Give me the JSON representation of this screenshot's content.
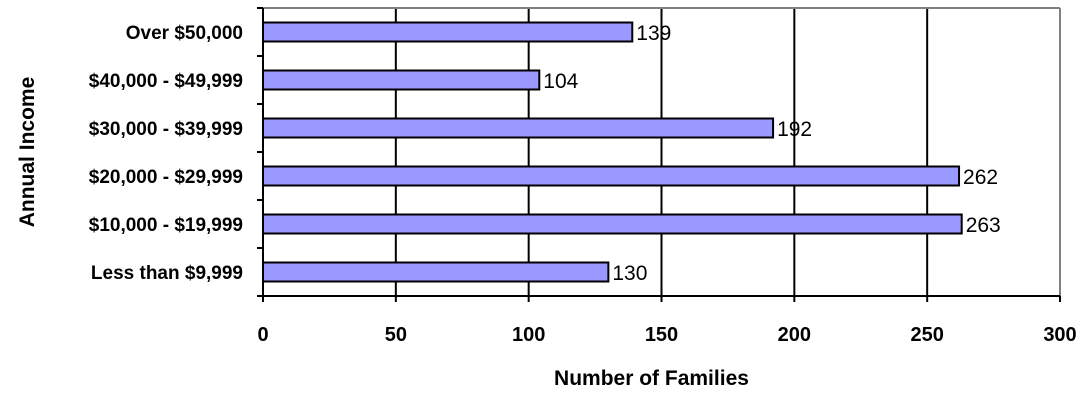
{
  "chart_data": {
    "type": "bar",
    "orientation": "horizontal",
    "categories": [
      "Less than $9,999",
      "$10,000 - $19,999",
      "$20,000 - $29,999",
      "$30,000 - $39,999",
      "$40,000 - $49,999",
      "Over $50,000"
    ],
    "values": [
      130,
      263,
      262,
      192,
      104,
      139
    ],
    "data_labels": [
      "130",
      "263",
      "262",
      "192",
      "104",
      "139"
    ],
    "xlabel": "Number of Families",
    "ylabel": "Annual Income",
    "xlim": [
      0,
      300
    ],
    "x_ticks": [
      0,
      50,
      100,
      150,
      200,
      250,
      300
    ],
    "x_tick_labels": [
      "0",
      "50",
      "100",
      "150",
      "200",
      "250",
      "300"
    ],
    "grid": "vertical",
    "legend": "none",
    "colors": {
      "bar_fill": "#9999ff",
      "bar_stroke": "#000000",
      "grid": "#000000",
      "plot_border": "#808080"
    }
  }
}
